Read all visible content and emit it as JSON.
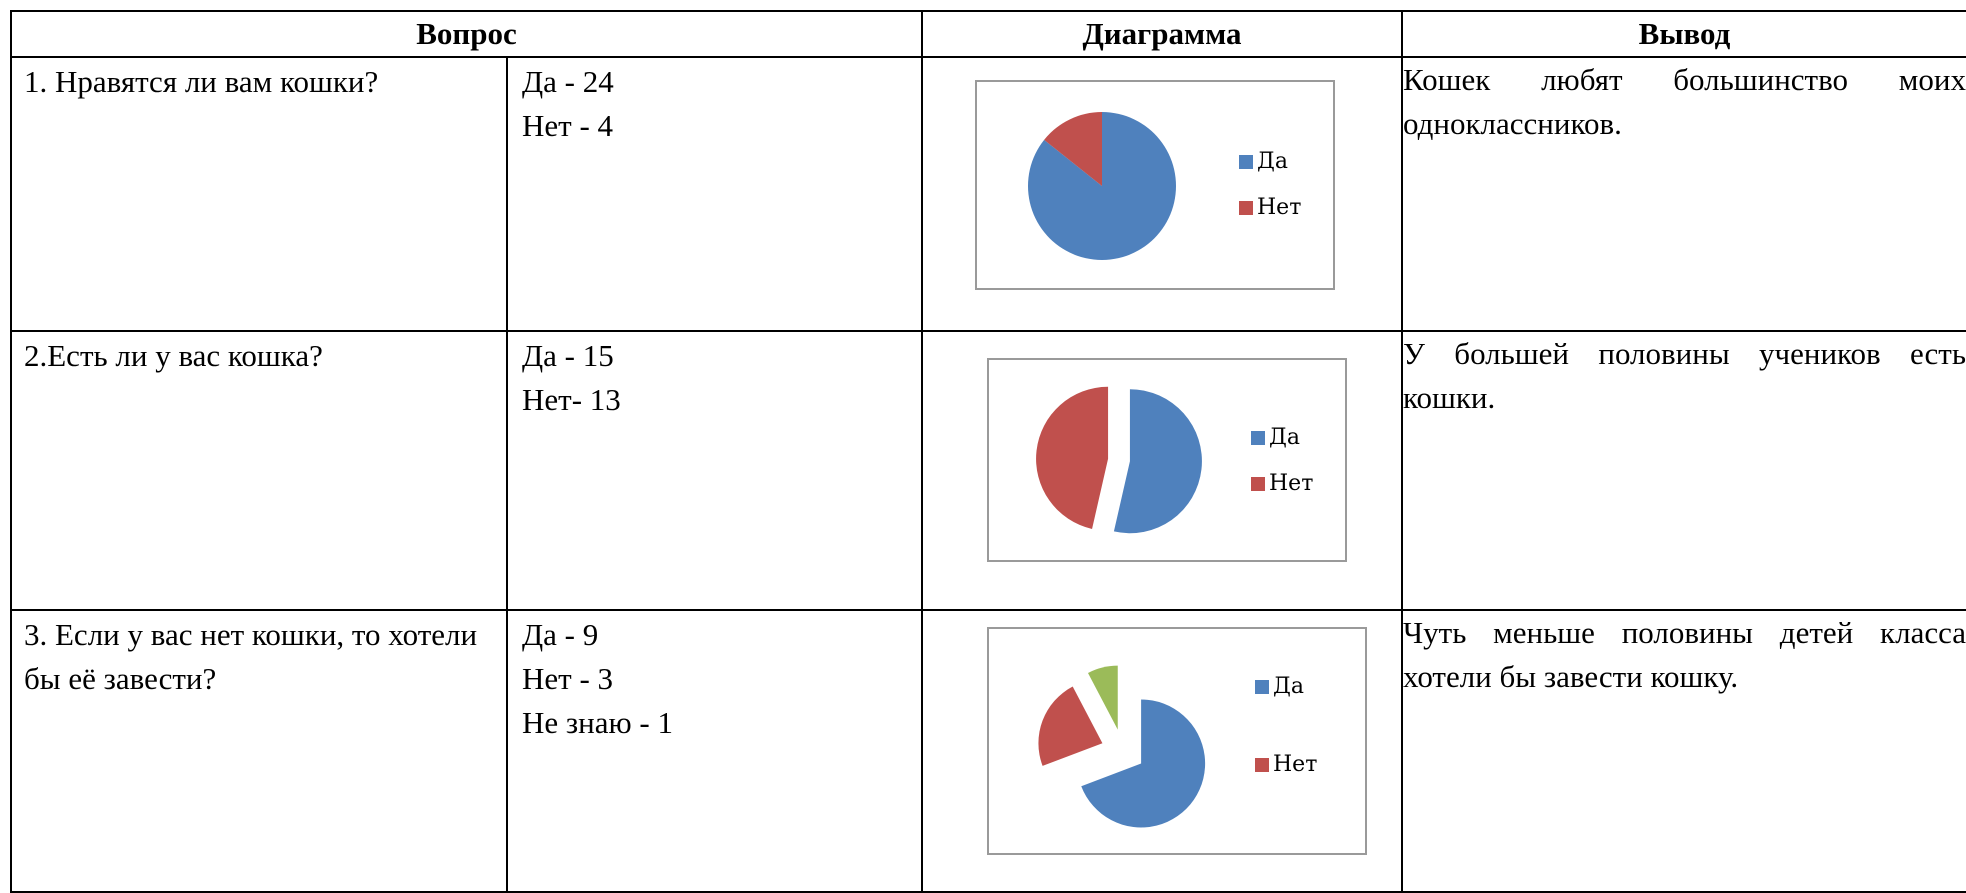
{
  "headers": {
    "question": "Вопрос",
    "chart": "Диаграмма",
    "conclusion": "Вывод"
  },
  "rows": [
    {
      "question": "1. Нравятся ли вам кошки?",
      "answers": [
        "Да - 24",
        "Нет - 4"
      ],
      "conclusion": "Кошек любят большинство моих одноклассников."
    },
    {
      "question": "2.Есть ли у вас кошка?",
      "answers": [
        "Да - 15",
        "Нет- 13"
      ],
      "conclusion": "У большей половины учеников есть кошки."
    },
    {
      "question": "3. Если у вас нет кошки, то хотели бы её завести?",
      "answers": [
        "Да - 9",
        "Нет - 3",
        "Не знаю - 1"
      ],
      "conclusion": "Чуть меньше половины детей класса хотели бы завести кошку."
    }
  ],
  "chart_data": [
    {
      "type": "pie",
      "categories": [
        "Да",
        "Нет"
      ],
      "values": [
        24,
        4
      ],
      "legend": [
        "Да",
        "Нет"
      ],
      "colors": [
        "#4f81bd",
        "#c0504d"
      ],
      "legend_position": "right"
    },
    {
      "type": "pie",
      "categories": [
        "Да",
        "Нет"
      ],
      "values": [
        15,
        13
      ],
      "legend": [
        "Да",
        "Нет"
      ],
      "colors": [
        "#4f81bd",
        "#c0504d"
      ],
      "exploded": true,
      "legend_position": "right"
    },
    {
      "type": "pie",
      "categories": [
        "Да",
        "Нет",
        "Не знаю"
      ],
      "values": [
        9,
        3,
        1
      ],
      "legend": [
        "Да",
        "Нет"
      ],
      "colors": [
        "#4f81bd",
        "#c0504d",
        "#9bbb59"
      ],
      "exploded": true,
      "legend_position": "right"
    }
  ]
}
